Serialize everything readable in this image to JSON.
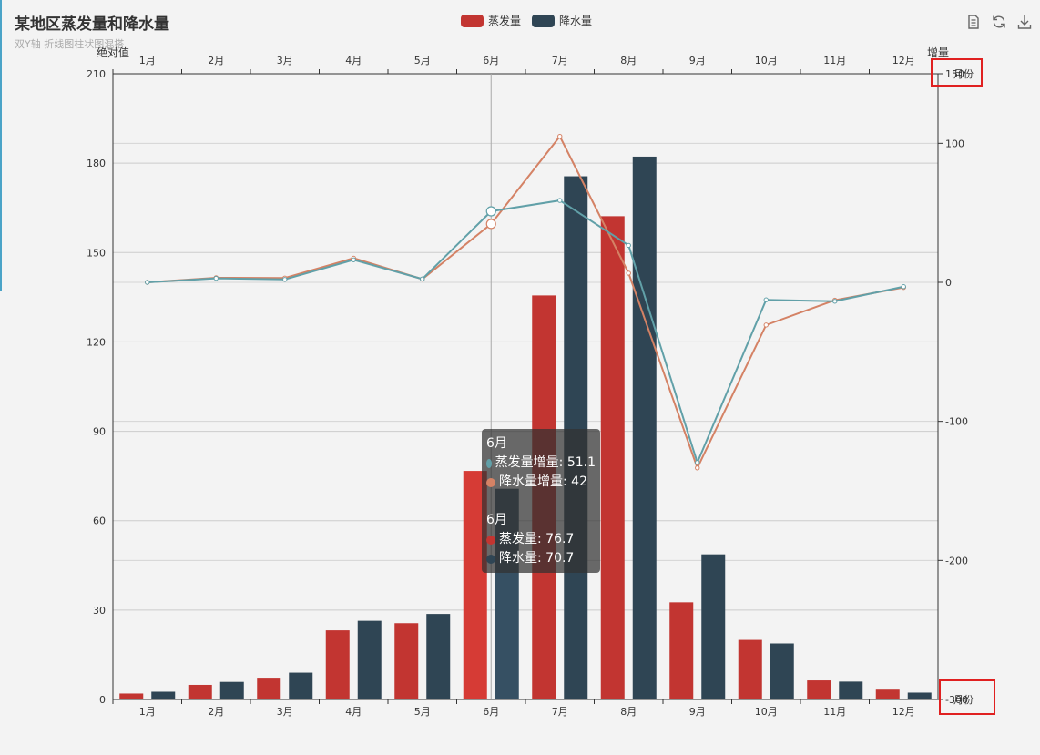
{
  "title": "某地区蒸发量和降水量",
  "subtitle": "双Y轴 折线图柱状图混搭",
  "toolbox": {
    "icons": [
      "data-view-icon",
      "restore-icon",
      "save-image-icon"
    ]
  },
  "colors": {
    "evaporation": "#c23531",
    "precipitation": "#2f4554",
    "evaporation_increase": "#61a0a8",
    "precipitation_increase": "#d48265",
    "evaporation_highlight": "#d63b35",
    "precipitation_highlight": "#365063"
  },
  "chart_data": {
    "type": "bar",
    "categories": [
      "1月",
      "2月",
      "3月",
      "4月",
      "5月",
      "6月",
      "7月",
      "8月",
      "9月",
      "10月",
      "11月",
      "12月"
    ],
    "left_axis": {
      "name": "绝对值",
      "min": 0,
      "max": 210,
      "ticks": [
        0,
        30,
        60,
        90,
        120,
        150,
        180,
        210
      ]
    },
    "right_axis": {
      "name": "增量",
      "min": -300,
      "max": 150,
      "ticks": [
        "-300",
        "-200",
        "-100",
        "0",
        "100",
        "150"
      ]
    },
    "grid": true,
    "legend_position": "top-center",
    "series": [
      {
        "name": "蒸发量",
        "kind": "bar",
        "axis": "left",
        "values": [
          2.0,
          4.9,
          7.0,
          23.2,
          25.6,
          76.7,
          135.6,
          162.2,
          32.6,
          20.0,
          6.4,
          3.3
        ]
      },
      {
        "name": "降水量",
        "kind": "bar",
        "axis": "left",
        "values": [
          2.6,
          5.9,
          9.0,
          26.4,
          28.7,
          70.7,
          175.6,
          182.2,
          48.7,
          18.8,
          6.0,
          2.3
        ]
      },
      {
        "name": "蒸发量增量",
        "kind": "line",
        "axis": "right",
        "values": [
          0,
          2.9,
          2.1,
          16.2,
          2.4,
          51.1,
          58.9,
          26.6,
          -129.6,
          -12.6,
          -13.6,
          -3.1
        ]
      },
      {
        "name": "降水量增量",
        "kind": "line",
        "axis": "right",
        "values": [
          0,
          3.3,
          3.1,
          17.4,
          2.3,
          42,
          105,
          6.6,
          -133.5,
          -30.7,
          -12.8,
          -3.7
        ]
      }
    ],
    "hover_index": 5,
    "right_axis_overlay_labels": {
      "top": "月份",
      "bottom": "月份"
    }
  },
  "tooltip": {
    "group1_title": "6月",
    "group1_rows": [
      {
        "label": "蒸发量增量: 51.1",
        "color": "#61a0a8"
      },
      {
        "label": "降水量增量: 42",
        "color": "#d48265"
      }
    ],
    "group2_title": "6月",
    "group2_rows": [
      {
        "label": "蒸发量: 76.7",
        "color": "#c23531"
      },
      {
        "label": "降水量: 70.7",
        "color": "#2f4554"
      }
    ]
  }
}
